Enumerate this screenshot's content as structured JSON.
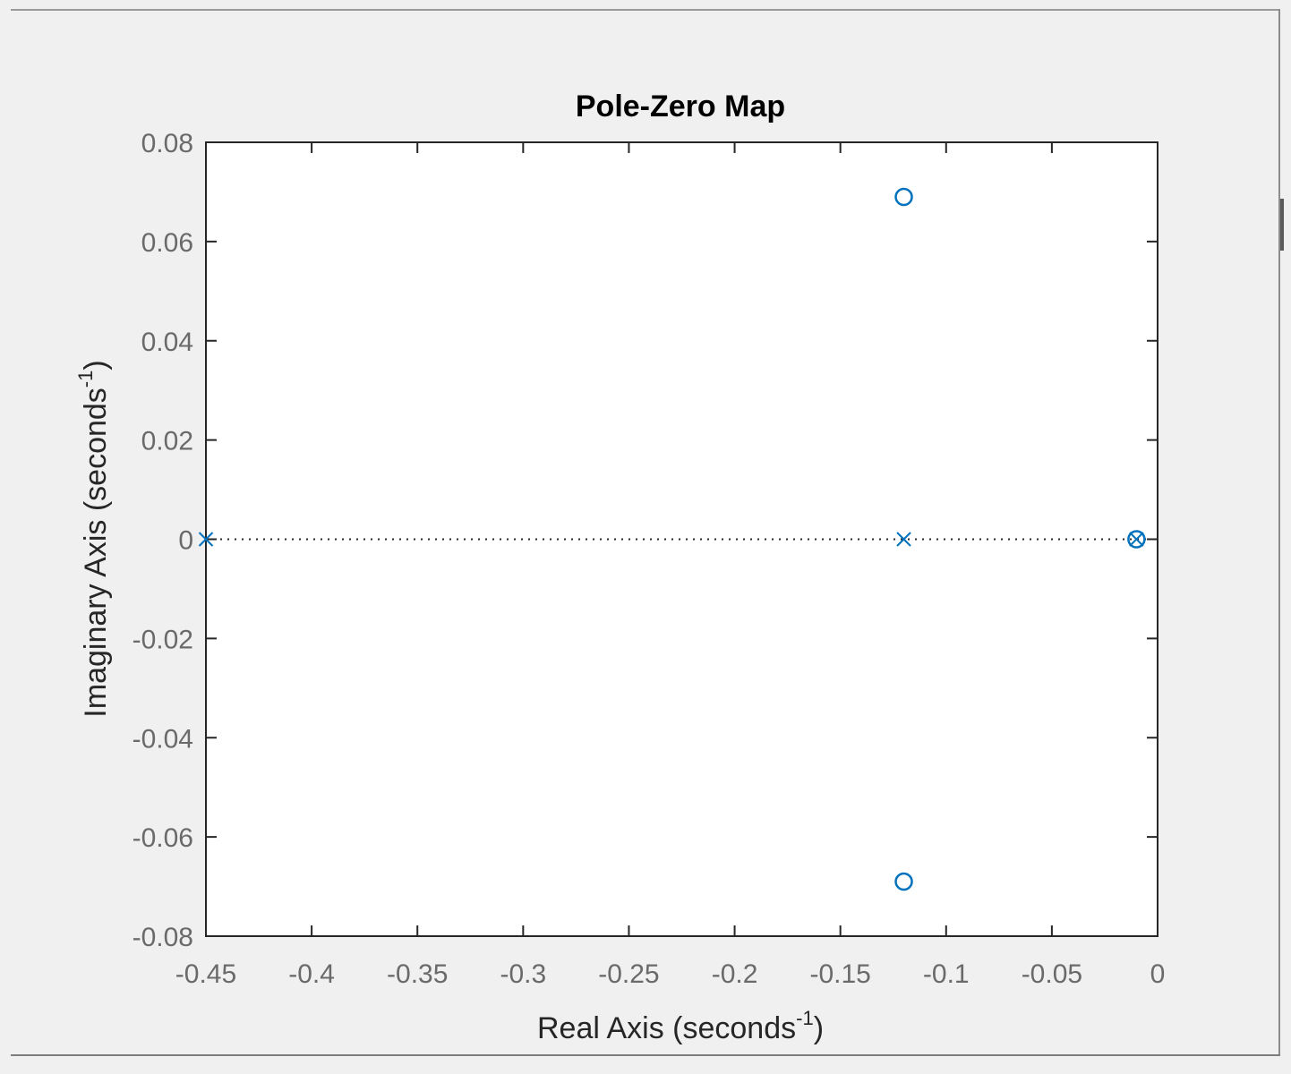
{
  "chart_data": {
    "type": "scatter",
    "title": "Pole-Zero Map",
    "xlabel": "Real Axis (seconds",
    "ylabel": "Imaginary Axis (seconds",
    "unit_exponent": "-1",
    "label_close": ")",
    "xlim": [
      -0.45,
      0
    ],
    "ylim": [
      -0.08,
      0.08
    ],
    "xticks": [
      -0.45,
      -0.4,
      -0.35,
      -0.3,
      -0.25,
      -0.2,
      -0.15,
      -0.1,
      -0.05,
      0
    ],
    "xtick_labels": [
      "-0.45",
      "-0.4",
      "-0.35",
      "-0.3",
      "-0.25",
      "-0.2",
      "-0.15",
      "-0.1",
      "-0.05",
      "0"
    ],
    "yticks": [
      0.08,
      0.06,
      0.04,
      0.02,
      0,
      -0.02,
      -0.04,
      -0.06,
      -0.08
    ],
    "ytick_labels": [
      "0.08",
      "0.06",
      "0.04",
      "0.02",
      "0",
      "-0.02",
      "-0.04",
      "-0.06",
      "-0.08"
    ],
    "grid": false,
    "reference_line": {
      "y": 0,
      "style": "dotted"
    },
    "series": [
      {
        "marker": "x",
        "color": "#0072bd",
        "points": [
          [
            -0.45,
            0
          ],
          [
            -0.12,
            0
          ],
          [
            -0.01,
            0
          ]
        ]
      },
      {
        "marker": "o",
        "color": "#0072bd",
        "points": [
          [
            -0.12,
            0.069
          ],
          [
            -0.12,
            -0.069
          ],
          [
            -0.01,
            0
          ]
        ]
      }
    ]
  }
}
